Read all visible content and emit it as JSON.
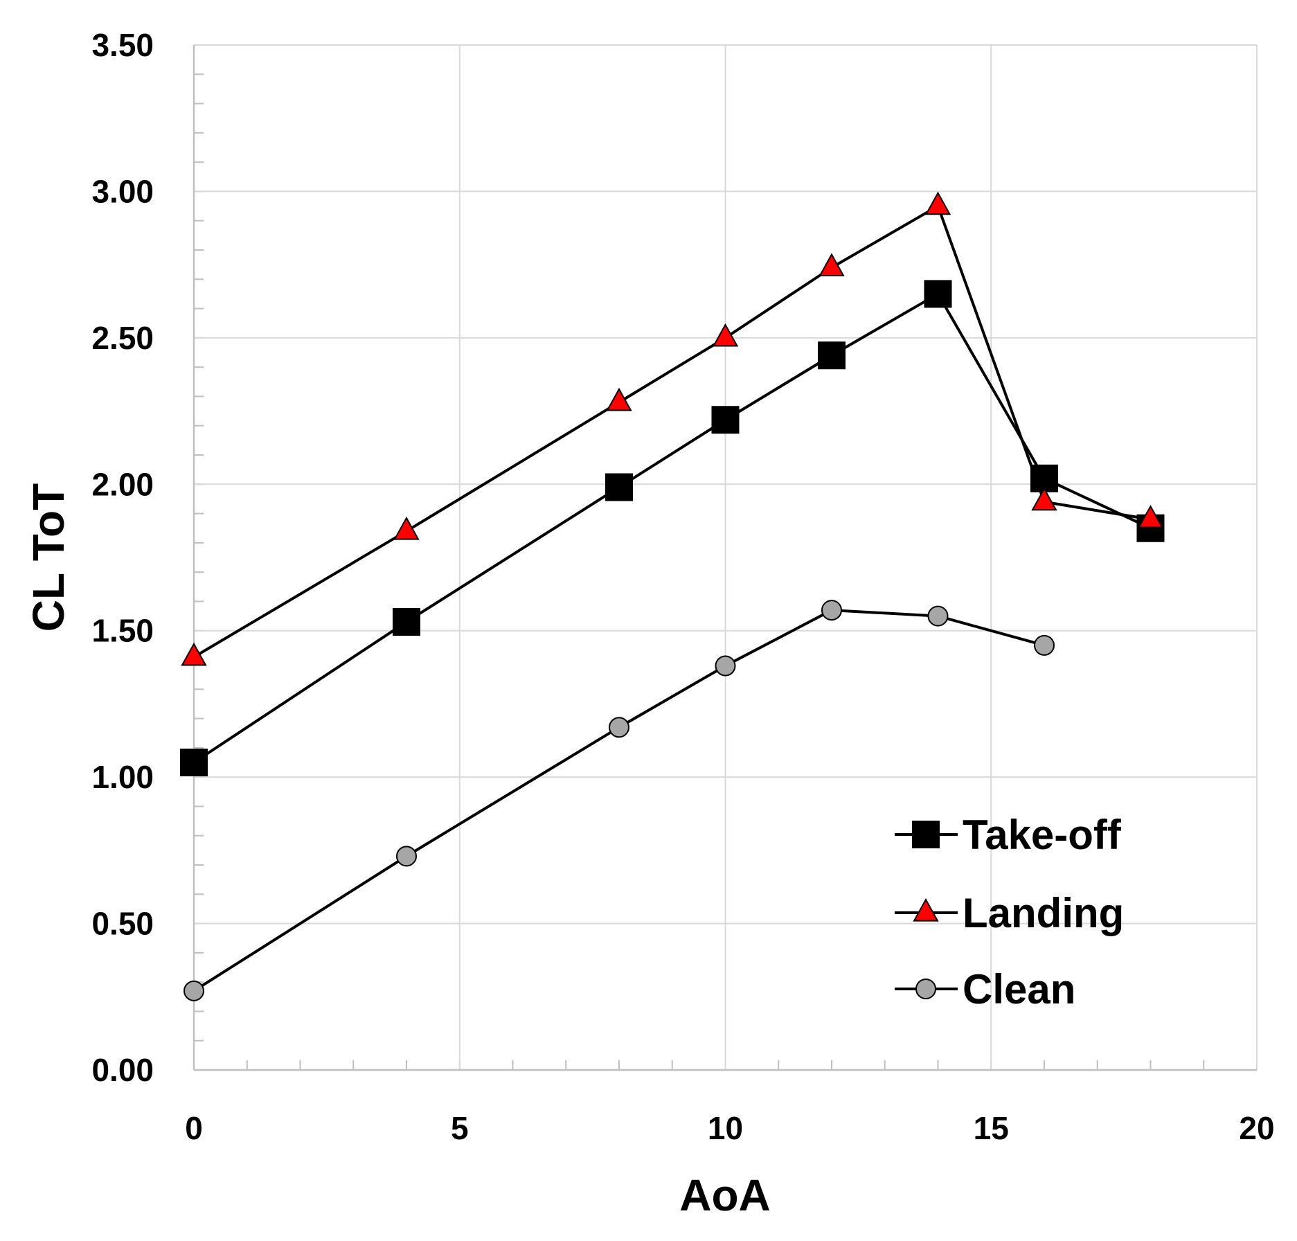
{
  "chart_data": {
    "type": "line",
    "title": "",
    "xlabel": "AoA",
    "ylabel": "CL ToT",
    "xlim": [
      0,
      20
    ],
    "ylim": [
      0,
      3.5
    ],
    "x_ticks": [
      0,
      5,
      10,
      15,
      20
    ],
    "x_tick_labels": [
      "0",
      "5",
      "10",
      "15",
      "20"
    ],
    "y_ticks": [
      0,
      0.5,
      1.0,
      1.5,
      2.0,
      2.5,
      3.0,
      3.5
    ],
    "y_tick_labels": [
      "0.00",
      "0.50",
      "1.00",
      "1.50",
      "2.00",
      "2.50",
      "3.00",
      "3.50"
    ],
    "x_minor_step": 1,
    "y_minor_step": 0.1,
    "grid": true,
    "legend_position": "bottom-right",
    "series": [
      {
        "name": "Take-off",
        "marker": "square",
        "color": "#000000",
        "x": [
          0,
          4,
          8,
          10,
          12,
          14,
          16,
          18
        ],
        "values": [
          1.05,
          1.53,
          1.99,
          2.22,
          2.44,
          2.65,
          2.02,
          1.85
        ]
      },
      {
        "name": "Landing",
        "marker": "triangle",
        "color": "#ff0000",
        "x": [
          0,
          4,
          8,
          10,
          12,
          14,
          16,
          18
        ],
        "values": [
          1.41,
          1.84,
          2.28,
          2.5,
          2.74,
          2.95,
          1.94,
          1.88
        ]
      },
      {
        "name": "Clean",
        "marker": "circle",
        "color": "#a6a6a6",
        "x": [
          0,
          4,
          8,
          10,
          12,
          14,
          16
        ],
        "values": [
          0.27,
          0.73,
          1.17,
          1.38,
          1.57,
          1.55,
          1.45
        ]
      }
    ]
  }
}
